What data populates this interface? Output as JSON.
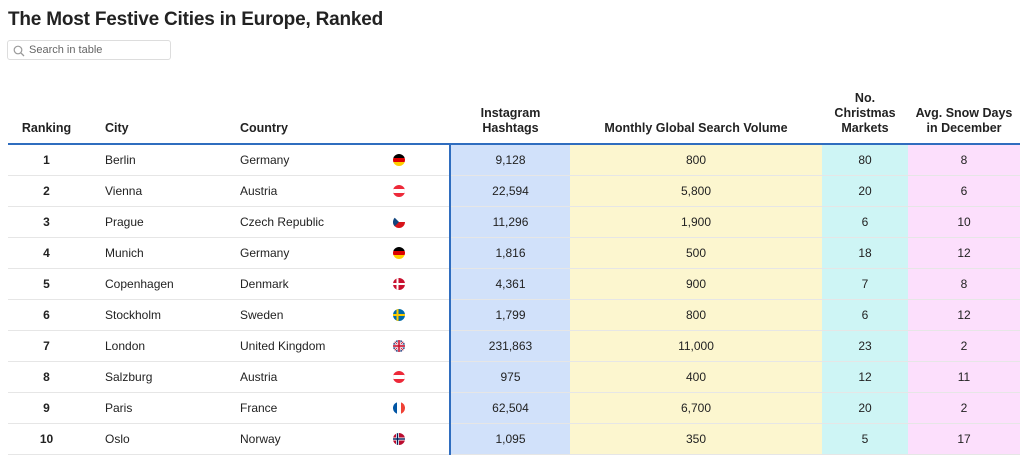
{
  "header": {
    "title": "The Most Festive Cities in Europe, Ranked"
  },
  "search": {
    "placeholder": "Search in table"
  },
  "table": {
    "columns": [
      "Ranking",
      "City",
      "Country",
      "Instagram Hashtags",
      "Monthly Global Search Volume",
      "No. Christmas Markets",
      "Avg. Snow Days in December"
    ],
    "rows": [
      [
        1,
        "Berlin",
        "Germany",
        "9,128",
        "800",
        80,
        8
      ],
      [
        2,
        "Vienna",
        "Austria",
        "22,594",
        "5,800",
        20,
        6
      ],
      [
        3,
        "Prague",
        "Czech Republic",
        "11,296",
        "1,900",
        6,
        10
      ],
      [
        4,
        "Munich",
        "Germany",
        "1,816",
        "500",
        18,
        12
      ],
      [
        5,
        "Copenhagen",
        "Denmark",
        "4,361",
        "900",
        7,
        8
      ],
      [
        6,
        "Stockholm",
        "Sweden",
        "1,799",
        "800",
        6,
        12
      ],
      [
        7,
        "London",
        "United Kingdom",
        "231,863",
        "11,000",
        23,
        2
      ],
      [
        8,
        "Salzburg",
        "Austria",
        "975",
        "400",
        12,
        11
      ],
      [
        9,
        "Paris",
        "France",
        "62,504",
        "6,700",
        20,
        2
      ],
      [
        10,
        "Oslo",
        "Norway",
        "1,095",
        "350",
        5,
        17
      ]
    ]
  }
}
